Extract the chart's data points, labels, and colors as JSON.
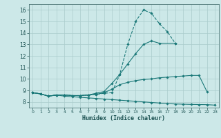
{
  "xlabel": "Humidex (Indice chaleur)",
  "background_color": "#cce8e8",
  "grid_color": "#aacccc",
  "line_color": "#1a7878",
  "xlim": [
    -0.5,
    23.5
  ],
  "ylim": [
    7.5,
    16.5
  ],
  "xticks": [
    0,
    1,
    2,
    3,
    4,
    5,
    6,
    7,
    8,
    9,
    10,
    11,
    12,
    13,
    14,
    15,
    16,
    17,
    18,
    19,
    20,
    21,
    22,
    23
  ],
  "yticks": [
    8,
    9,
    10,
    11,
    12,
    13,
    14,
    15,
    16
  ],
  "line1_x": [
    0,
    1,
    2,
    3,
    4,
    5,
    6,
    7,
    8,
    9,
    10,
    11,
    12,
    13,
    14,
    15,
    16,
    17,
    18
  ],
  "line1_y": [
    8.8,
    8.7,
    8.5,
    8.6,
    8.6,
    8.55,
    8.55,
    8.6,
    8.65,
    8.75,
    8.8,
    10.4,
    13.0,
    15.0,
    16.0,
    15.7,
    14.8,
    14.1,
    13.1
  ],
  "line1_dashed": true,
  "line2_x": [
    0,
    1,
    2,
    3,
    4,
    5,
    6,
    7,
    8,
    9,
    10,
    11,
    12,
    13,
    14,
    15,
    16,
    18
  ],
  "line2_y": [
    8.8,
    8.7,
    8.5,
    8.6,
    8.6,
    8.55,
    8.55,
    8.6,
    8.75,
    8.9,
    9.6,
    10.4,
    11.3,
    12.2,
    13.0,
    13.3,
    13.1,
    13.1
  ],
  "line2_dashed": false,
  "line3_x": [
    0,
    1,
    2,
    3,
    4,
    5,
    6,
    7,
    8,
    9,
    10,
    11,
    12,
    13,
    14,
    15,
    16,
    17,
    18,
    19,
    20,
    21,
    22
  ],
  "line3_y": [
    8.8,
    8.7,
    8.5,
    8.6,
    8.6,
    8.55,
    8.55,
    8.6,
    8.65,
    8.8,
    9.1,
    9.5,
    9.7,
    9.85,
    9.95,
    10.0,
    10.1,
    10.15,
    10.2,
    10.25,
    10.3,
    10.3,
    8.9
  ],
  "line3_dashed": false,
  "line4_x": [
    0,
    1,
    2,
    3,
    4,
    5,
    6,
    7,
    8,
    9,
    10,
    11,
    12,
    13,
    14,
    15,
    16,
    17,
    18,
    19,
    20,
    21,
    22,
    23
  ],
  "line4_y": [
    8.8,
    8.7,
    8.5,
    8.6,
    8.5,
    8.45,
    8.4,
    8.35,
    8.3,
    8.25,
    8.2,
    8.15,
    8.1,
    8.05,
    8.0,
    7.95,
    7.9,
    7.85,
    7.82,
    7.8,
    7.78,
    7.77,
    7.76,
    7.72
  ],
  "line4_dashed": false
}
